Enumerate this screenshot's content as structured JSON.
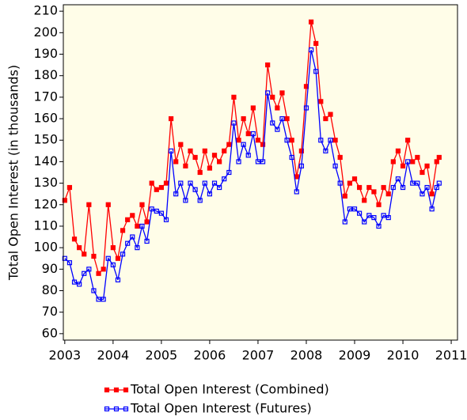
{
  "chart_data": {
    "type": "line",
    "y_label": "Total Open Interest (in thousands)",
    "x": [
      2003.0,
      2003.1,
      2003.2,
      2003.3,
      2003.4,
      2003.5,
      2003.6,
      2003.7,
      2003.8,
      2003.9,
      2004.0,
      2004.1,
      2004.2,
      2004.3,
      2004.4,
      2004.5,
      2004.6,
      2004.7,
      2004.8,
      2004.9,
      2005.0,
      2005.1,
      2005.2,
      2005.3,
      2005.4,
      2005.5,
      2005.6,
      2005.7,
      2005.8,
      2005.9,
      2006.0,
      2006.1,
      2006.2,
      2006.3,
      2006.4,
      2006.5,
      2006.6,
      2006.7,
      2006.8,
      2006.9,
      2007.0,
      2007.1,
      2007.2,
      2007.3,
      2007.4,
      2007.5,
      2007.6,
      2007.7,
      2007.8,
      2007.9,
      2008.0,
      2008.1,
      2008.2,
      2008.3,
      2008.4,
      2008.5,
      2008.6,
      2008.7,
      2008.8,
      2008.9,
      2009.0,
      2009.1,
      2009.2,
      2009.3,
      2009.4,
      2009.5,
      2009.6,
      2009.7,
      2009.8,
      2009.9,
      2010.0,
      2010.1,
      2010.2,
      2010.3,
      2010.4,
      2010.5,
      2010.6,
      2010.7,
      2010.75
    ],
    "series": [
      {
        "name": "Total Open Interest (Combined)",
        "color": "#ff0000",
        "marker": "filled",
        "values": [
          122,
          128,
          104,
          100,
          97,
          120,
          96,
          88,
          90,
          120,
          100,
          95,
          108,
          113,
          115,
          110,
          120,
          112,
          130,
          127,
          128,
          130,
          160,
          140,
          148,
          138,
          145,
          142,
          135,
          145,
          137,
          143,
          140,
          145,
          148,
          170,
          150,
          160,
          153,
          165,
          150,
          148,
          185,
          170,
          165,
          172,
          160,
          150,
          133,
          145,
          175,
          205,
          195,
          168,
          160,
          162,
          150,
          142,
          124,
          130,
          132,
          128,
          122,
          128,
          126,
          120,
          128,
          125,
          140,
          145,
          138,
          150,
          140,
          142,
          135,
          138,
          125,
          140,
          142
        ]
      },
      {
        "name": "Total Open Interest (Futures)",
        "color": "#0000ff",
        "marker": "hollow",
        "values": [
          95,
          93,
          84,
          83,
          88,
          90,
          80,
          76,
          76,
          95,
          92,
          85,
          97,
          102,
          105,
          100,
          110,
          103,
          118,
          117,
          116,
          113,
          145,
          125,
          130,
          122,
          130,
          127,
          122,
          130,
          125,
          130,
          128,
          132,
          135,
          158,
          140,
          148,
          143,
          153,
          140,
          140,
          172,
          158,
          155,
          160,
          150,
          142,
          126,
          138,
          165,
          192,
          182,
          150,
          145,
          150,
          138,
          130,
          112,
          118,
          118,
          116,
          112,
          115,
          114,
          110,
          115,
          114,
          128,
          132,
          128,
          140,
          130,
          130,
          125,
          128,
          118,
          128,
          130
        ]
      }
    ],
    "xlim": [
      2002.97,
      2011.13
    ],
    "xticks": [
      2003,
      2004,
      2005,
      2006,
      2007,
      2008,
      2009,
      2010,
      2011
    ],
    "ylim": [
      57,
      213
    ],
    "yticks": [
      60,
      70,
      80,
      90,
      100,
      110,
      120,
      130,
      140,
      150,
      160,
      170,
      180,
      190,
      200,
      210
    ],
    "plot_background": "#fffde8"
  }
}
